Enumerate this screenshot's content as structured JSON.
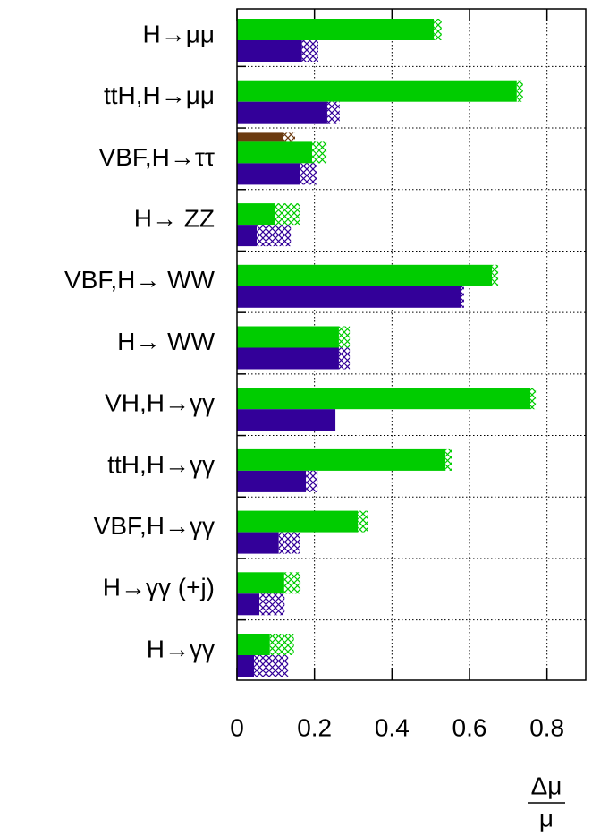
{
  "chart_data": {
    "type": "bar",
    "orientation": "horizontal",
    "categories": [
      "H→μμ",
      "ttH,H→μμ",
      "VBF,H→ττ",
      "H→ ZZ",
      "VBF,H→ WW",
      "H→ WW",
      "VH,H→γγ",
      "ttH,H→γγ",
      "VBF,H→γγ",
      "H→γγ  (+j)",
      "H→γγ"
    ],
    "series": [
      {
        "color": "#6b3a0f",
        "values": [
          null,
          null,
          0.118,
          null,
          null,
          null,
          null,
          null,
          null,
          null,
          null
        ],
        "hatch_values": [
          null,
          null,
          0.032,
          null,
          null,
          null,
          null,
          null,
          null,
          null,
          null
        ]
      },
      {
        "color": "#00cc00",
        "values": [
          0.508,
          0.722,
          0.194,
          0.097,
          0.658,
          0.263,
          0.757,
          0.538,
          0.312,
          0.122,
          0.085
        ],
        "hatch_values": [
          0.02,
          0.016,
          0.037,
          0.065,
          0.016,
          0.028,
          0.014,
          0.018,
          0.025,
          0.042,
          0.062
        ]
      },
      {
        "color": "#330099",
        "values": [
          0.168,
          0.233,
          0.164,
          0.051,
          0.577,
          0.263,
          0.254,
          0.178,
          0.108,
          0.058,
          0.044
        ],
        "hatch_values": [
          0.042,
          0.032,
          0.042,
          0.088,
          0.009,
          0.028,
          0,
          0.03,
          0.055,
          0.065,
          0.088
        ]
      }
    ],
    "xlim": [
      0,
      0.9
    ],
    "xticks": [
      0,
      0.2,
      0.4,
      0.6,
      0.8
    ],
    "grid": true,
    "x_label": {
      "numerator": "Δμ",
      "denominator": "μ"
    }
  }
}
